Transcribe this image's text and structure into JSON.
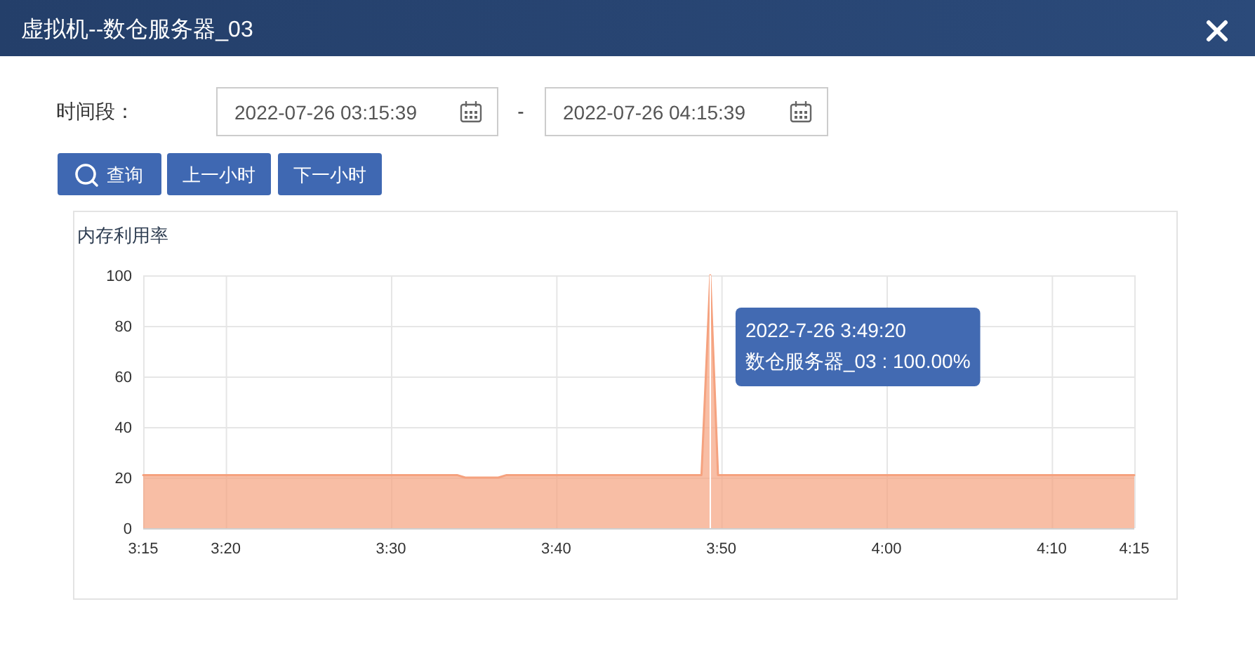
{
  "chart_data": {
    "type": "area",
    "title": "虚拟机--数仓服务器_03",
    "subtitle": "内存利用率",
    "x": [
      3.25,
      3.5667,
      3.575,
      3.6083,
      3.6167,
      3.8133,
      3.8222,
      3.83,
      4.25
    ],
    "series": [
      {
        "color": "#f5a27f",
        "values": [
          21,
          21,
          20,
          20,
          21,
          21,
          100,
          21,
          21
        ]
      }
    ],
    "xlim": [
      3.25,
      4.25
    ],
    "xticks": [
      {
        "value": 3.25,
        "label": "3:15"
      },
      {
        "value": 3.3333,
        "label": "3:20"
      },
      {
        "value": 3.5,
        "label": "3:30"
      },
      {
        "value": 3.6667,
        "label": "3:40"
      },
      {
        "value": 3.8333,
        "label": "3:50"
      },
      {
        "value": 4,
        "label": "4:00"
      },
      {
        "value": 4.1667,
        "label": "4:10"
      },
      {
        "value": 4.25,
        "label": "4:15"
      }
    ],
    "ylim": [
      0,
      100
    ],
    "yticks": [
      0,
      20,
      40,
      60,
      80,
      100
    ],
    "grid": true,
    "ref_lines": [
      {
        "axis": "x",
        "value": 3.8222,
        "color": "#ffffff"
      }
    ],
    "annotations": [
      "时间段：",
      "2022-07-26 03:15:39",
      "-",
      "2022-07-26 04:15:39",
      "查询",
      "上一小时",
      "下一小时",
      {
        "text": "2022-7-26 3:49:20\n数仓服务器_03 : 100.00%",
        "x": 3.8222,
        "y": 100
      }
    ]
  }
}
